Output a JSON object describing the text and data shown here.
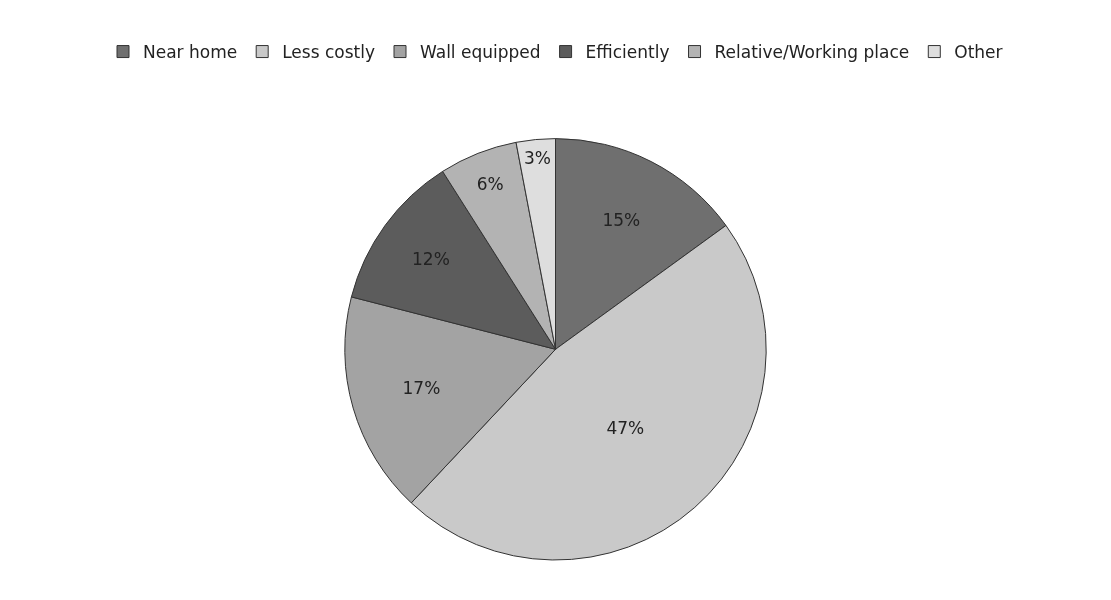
{
  "chart_data": {
    "type": "pie",
    "categories": [
      "Near home",
      "Less costly",
      "Wall equipped",
      "Efficiently",
      "Relative/Working place",
      "Other"
    ],
    "values": [
      15,
      47,
      17,
      12,
      6,
      3
    ],
    "value_labels": [
      "15%",
      "47%",
      "17%",
      "12%",
      "6%",
      "3%"
    ],
    "colors": [
      "#6f6f6f",
      "#c9c9c9",
      "#a3a3a3",
      "#5c5c5c",
      "#b3b3b3",
      "#dedede"
    ],
    "legend": "top"
  }
}
